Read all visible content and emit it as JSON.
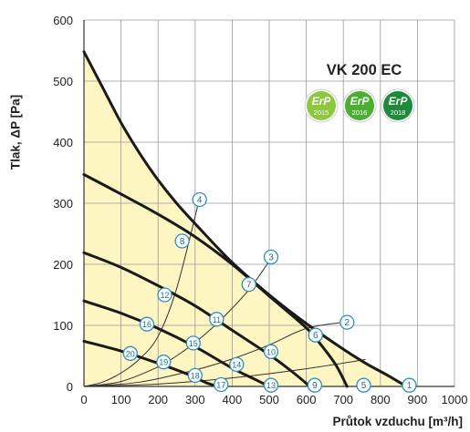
{
  "chart_data": {
    "type": "line",
    "title": "VK 200 EC",
    "xlabel": "Průtok vzduchu [m³/h]",
    "ylabel": "Tlak, ΔP [Pa]",
    "xlim": [
      0,
      1000
    ],
    "ylim": [
      0,
      600
    ],
    "xticks": [
      "0",
      "100",
      "200",
      "300",
      "400",
      "500",
      "600",
      "700",
      "800",
      "900",
      "1000"
    ],
    "yticks": [
      "0",
      "100",
      "200",
      "300",
      "400",
      "500",
      "600"
    ],
    "grid": true,
    "fill_color": "#fdf5c2",
    "line_color": "#1a1a1a",
    "point_fill": "#ffffff",
    "point_stroke": "#2e8fc2",
    "fan_curves": [
      {
        "points": [
          [
            0,
            548
          ],
          [
            50,
            490
          ],
          [
            100,
            432
          ],
          [
            150,
            382
          ],
          [
            200,
            338
          ],
          [
            250,
            300
          ],
          [
            310,
            260
          ],
          [
            400,
            203
          ],
          [
            500,
            150
          ],
          [
            600,
            103
          ],
          [
            700,
            61
          ],
          [
            760,
            38
          ],
          [
            820,
            18
          ],
          [
            870,
            0
          ]
        ]
      },
      {
        "points": [
          [
            0,
            347
          ],
          [
            100,
            315
          ],
          [
            200,
            282
          ],
          [
            300,
            245
          ],
          [
            400,
            200
          ],
          [
            500,
            148
          ],
          [
            600,
            96
          ],
          [
            640,
            68
          ],
          [
            680,
            35
          ],
          [
            710,
            0
          ]
        ]
      },
      {
        "points": [
          [
            0,
            219
          ],
          [
            100,
            195
          ],
          [
            200,
            165
          ],
          [
            300,
            132
          ],
          [
            400,
            92
          ],
          [
            500,
            52
          ],
          [
            560,
            25
          ],
          [
            610,
            0
          ]
        ]
      },
      {
        "points": [
          [
            0,
            140
          ],
          [
            100,
            120
          ],
          [
            200,
            95
          ],
          [
            300,
            65
          ],
          [
            400,
            30
          ],
          [
            460,
            12
          ],
          [
            500,
            0
          ]
        ]
      },
      {
        "points": [
          [
            0,
            74
          ],
          [
            100,
            58
          ],
          [
            200,
            38
          ],
          [
            280,
            20
          ],
          [
            330,
            6
          ],
          [
            365,
            0
          ]
        ]
      }
    ],
    "system_curves": [
      {
        "points": [
          [
            0,
            0
          ],
          [
            50,
            7
          ],
          [
            100,
            22
          ],
          [
            150,
            45
          ],
          [
            200,
            82
          ],
          [
            250,
            160
          ],
          [
            310,
            303
          ]
        ]
      },
      {
        "points": [
          [
            0,
            0
          ],
          [
            100,
            8
          ],
          [
            200,
            32
          ],
          [
            250,
            50
          ],
          [
            300,
            72
          ],
          [
            350,
            98
          ],
          [
            400,
            128
          ],
          [
            450,
            162
          ],
          [
            500,
            205
          ]
        ]
      },
      {
        "points": [
          [
            0,
            0
          ],
          [
            150,
            7
          ],
          [
            300,
            27
          ],
          [
            400,
            45
          ],
          [
            500,
            68
          ],
          [
            600,
            95
          ],
          [
            700,
            105
          ]
        ]
      },
      {
        "points": [
          [
            0,
            0
          ],
          [
            200,
            4
          ],
          [
            400,
            14
          ],
          [
            600,
            29
          ],
          [
            760,
            44
          ]
        ]
      }
    ],
    "points": [
      {
        "label": "1",
        "x": 878,
        "y": 2
      },
      {
        "label": "2",
        "x": 710,
        "y": 105
      },
      {
        "label": "3",
        "x": 505,
        "y": 212
      },
      {
        "label": "4",
        "x": 312,
        "y": 306
      },
      {
        "label": "5",
        "x": 755,
        "y": 2
      },
      {
        "label": "6",
        "x": 625,
        "y": 84
      },
      {
        "label": "7",
        "x": 445,
        "y": 167
      },
      {
        "label": "8",
        "x": 265,
        "y": 238
      },
      {
        "label": "9",
        "x": 623,
        "y": 2
      },
      {
        "label": "10",
        "x": 505,
        "y": 57
      },
      {
        "label": "11",
        "x": 358,
        "y": 110
      },
      {
        "label": "12",
        "x": 218,
        "y": 150
      },
      {
        "label": "13",
        "x": 505,
        "y": 2
      },
      {
        "label": "14",
        "x": 412,
        "y": 36
      },
      {
        "label": "15",
        "x": 295,
        "y": 71
      },
      {
        "label": "16",
        "x": 170,
        "y": 102
      },
      {
        "label": "17",
        "x": 370,
        "y": 3
      },
      {
        "label": "18",
        "x": 300,
        "y": 18
      },
      {
        "label": "19",
        "x": 215,
        "y": 40
      },
      {
        "label": "20",
        "x": 125,
        "y": 54
      }
    ]
  },
  "badges": [
    {
      "text": "ErP",
      "year": "2015",
      "color": "#8dc63f"
    },
    {
      "text": "ErP",
      "year": "2016",
      "color": "#4caf32"
    },
    {
      "text": "ErP",
      "year": "2018",
      "color": "#1e8a3c"
    }
  ]
}
